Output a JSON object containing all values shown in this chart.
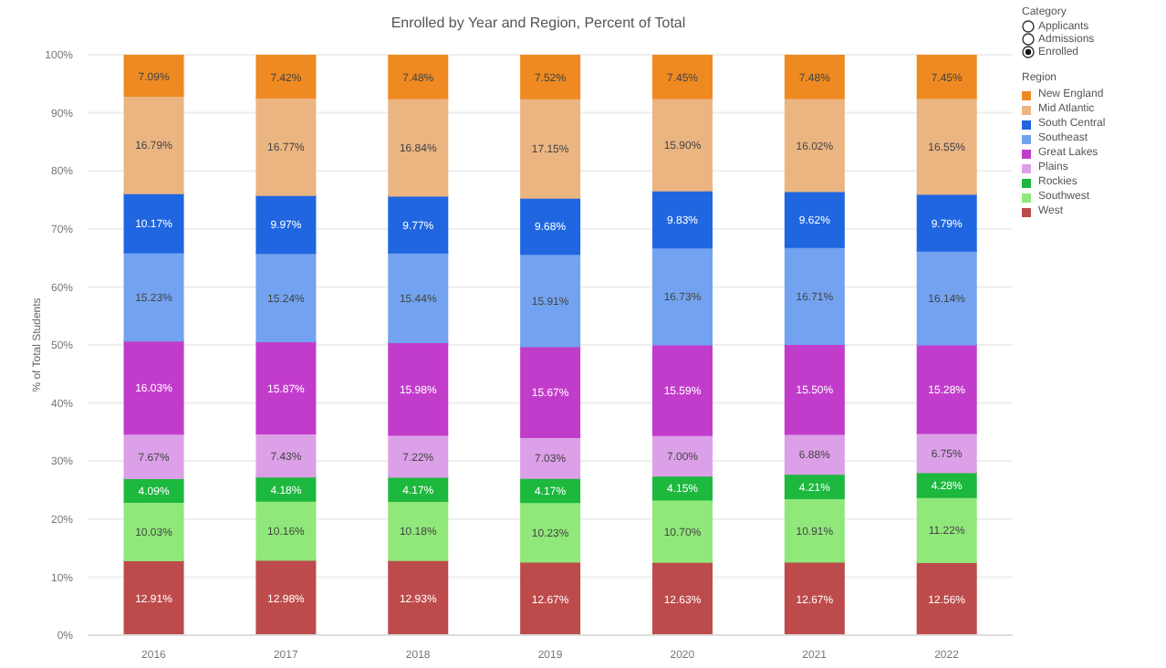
{
  "chart_data": {
    "type": "bar",
    "stacked": true,
    "title": "Enrolled by Year and Region, Percent of Total",
    "ylabel": "% of Total Students",
    "legend_title": "Region",
    "legend": "right",
    "grid": "y",
    "annotations": [
      "Category",
      "Applicants",
      "Admissions",
      "Enrolled"
    ],
    "categories": [
      "2016",
      "2017",
      "2018",
      "2019",
      "2020",
      "2021",
      "2022"
    ],
    "ylim": [
      0,
      100
    ],
    "yticks": [
      {
        "value": 0,
        "label": "0%"
      },
      {
        "value": 10,
        "label": "10%"
      },
      {
        "value": 20,
        "label": "20%"
      },
      {
        "value": 30,
        "label": "30%"
      },
      {
        "value": 40,
        "label": "40%"
      },
      {
        "value": 50,
        "label": "50%"
      },
      {
        "value": 60,
        "label": "60%"
      },
      {
        "value": 70,
        "label": "70%"
      },
      {
        "value": 80,
        "label": "80%"
      },
      {
        "value": 90,
        "label": "90%"
      },
      {
        "value": 100,
        "label": "100%"
      }
    ],
    "series": [
      {
        "name": "West",
        "color": "#bd4b4b",
        "values": [
          12.91,
          12.98,
          12.93,
          12.67,
          12.63,
          12.67,
          12.56
        ],
        "value_labels": [
          "12.91%",
          "12.98%",
          "12.93%",
          "12.67%",
          "12.63%",
          "12.67%",
          "12.56%"
        ]
      },
      {
        "name": "Southwest",
        "color": "#90e87a",
        "values": [
          10.03,
          10.16,
          10.18,
          10.23,
          10.7,
          10.91,
          11.22
        ],
        "value_labels": [
          "10.03%",
          "10.16%",
          "10.18%",
          "10.23%",
          "10.70%",
          "10.91%",
          "11.22%"
        ]
      },
      {
        "name": "Rockies",
        "color": "#1db83e",
        "values": [
          4.09,
          4.18,
          4.17,
          4.17,
          4.15,
          4.21,
          4.28
        ],
        "value_labels": [
          "4.09%",
          "4.18%",
          "4.17%",
          "4.17%",
          "4.15%",
          "4.21%",
          "4.28%"
        ]
      },
      {
        "name": "Plains",
        "color": "#dca0e8",
        "values": [
          7.67,
          7.43,
          7.22,
          7.03,
          7.0,
          6.88,
          6.75
        ],
        "value_labels": [
          "7.67%",
          "7.43%",
          "7.22%",
          "7.03%",
          "7.00%",
          "6.88%",
          "6.75%"
        ]
      },
      {
        "name": "Great Lakes",
        "color": "#c23ccb",
        "values": [
          16.03,
          15.87,
          15.98,
          15.67,
          15.59,
          15.5,
          15.28
        ],
        "value_labels": [
          "16.03%",
          "15.87%",
          "15.98%",
          "15.67%",
          "15.59%",
          "15.50%",
          "15.28%"
        ]
      },
      {
        "name": "Southeast",
        "color": "#73a3f0",
        "values": [
          15.23,
          15.24,
          15.44,
          15.91,
          16.73,
          16.71,
          16.14
        ],
        "value_labels": [
          "15.23%",
          "15.24%",
          "15.44%",
          "15.91%",
          "16.73%",
          "16.71%",
          "16.14%"
        ]
      },
      {
        "name": "South Central",
        "color": "#1f66e0",
        "values": [
          10.17,
          9.97,
          9.77,
          9.68,
          9.83,
          9.62,
          9.79
        ],
        "value_labels": [
          "10.17%",
          "9.97%",
          "9.77%",
          "9.68%",
          "9.83%",
          "9.62%",
          "9.79%"
        ]
      },
      {
        "name": "Mid Atlantic",
        "color": "#ebb582",
        "values": [
          16.79,
          16.77,
          16.84,
          17.15,
          15.9,
          16.02,
          16.55
        ],
        "value_labels": [
          "16.79%",
          "16.77%",
          "16.84%",
          "17.15%",
          "15.90%",
          "16.02%",
          "16.55%"
        ]
      },
      {
        "name": "New England",
        "color": "#ef8a22",
        "values": [
          7.09,
          7.42,
          7.48,
          7.52,
          7.45,
          7.48,
          7.45
        ],
        "value_labels": [
          "7.09%",
          "7.42%",
          "7.48%",
          "7.52%",
          "7.45%",
          "7.48%",
          "7.45%"
        ]
      }
    ]
  }
}
